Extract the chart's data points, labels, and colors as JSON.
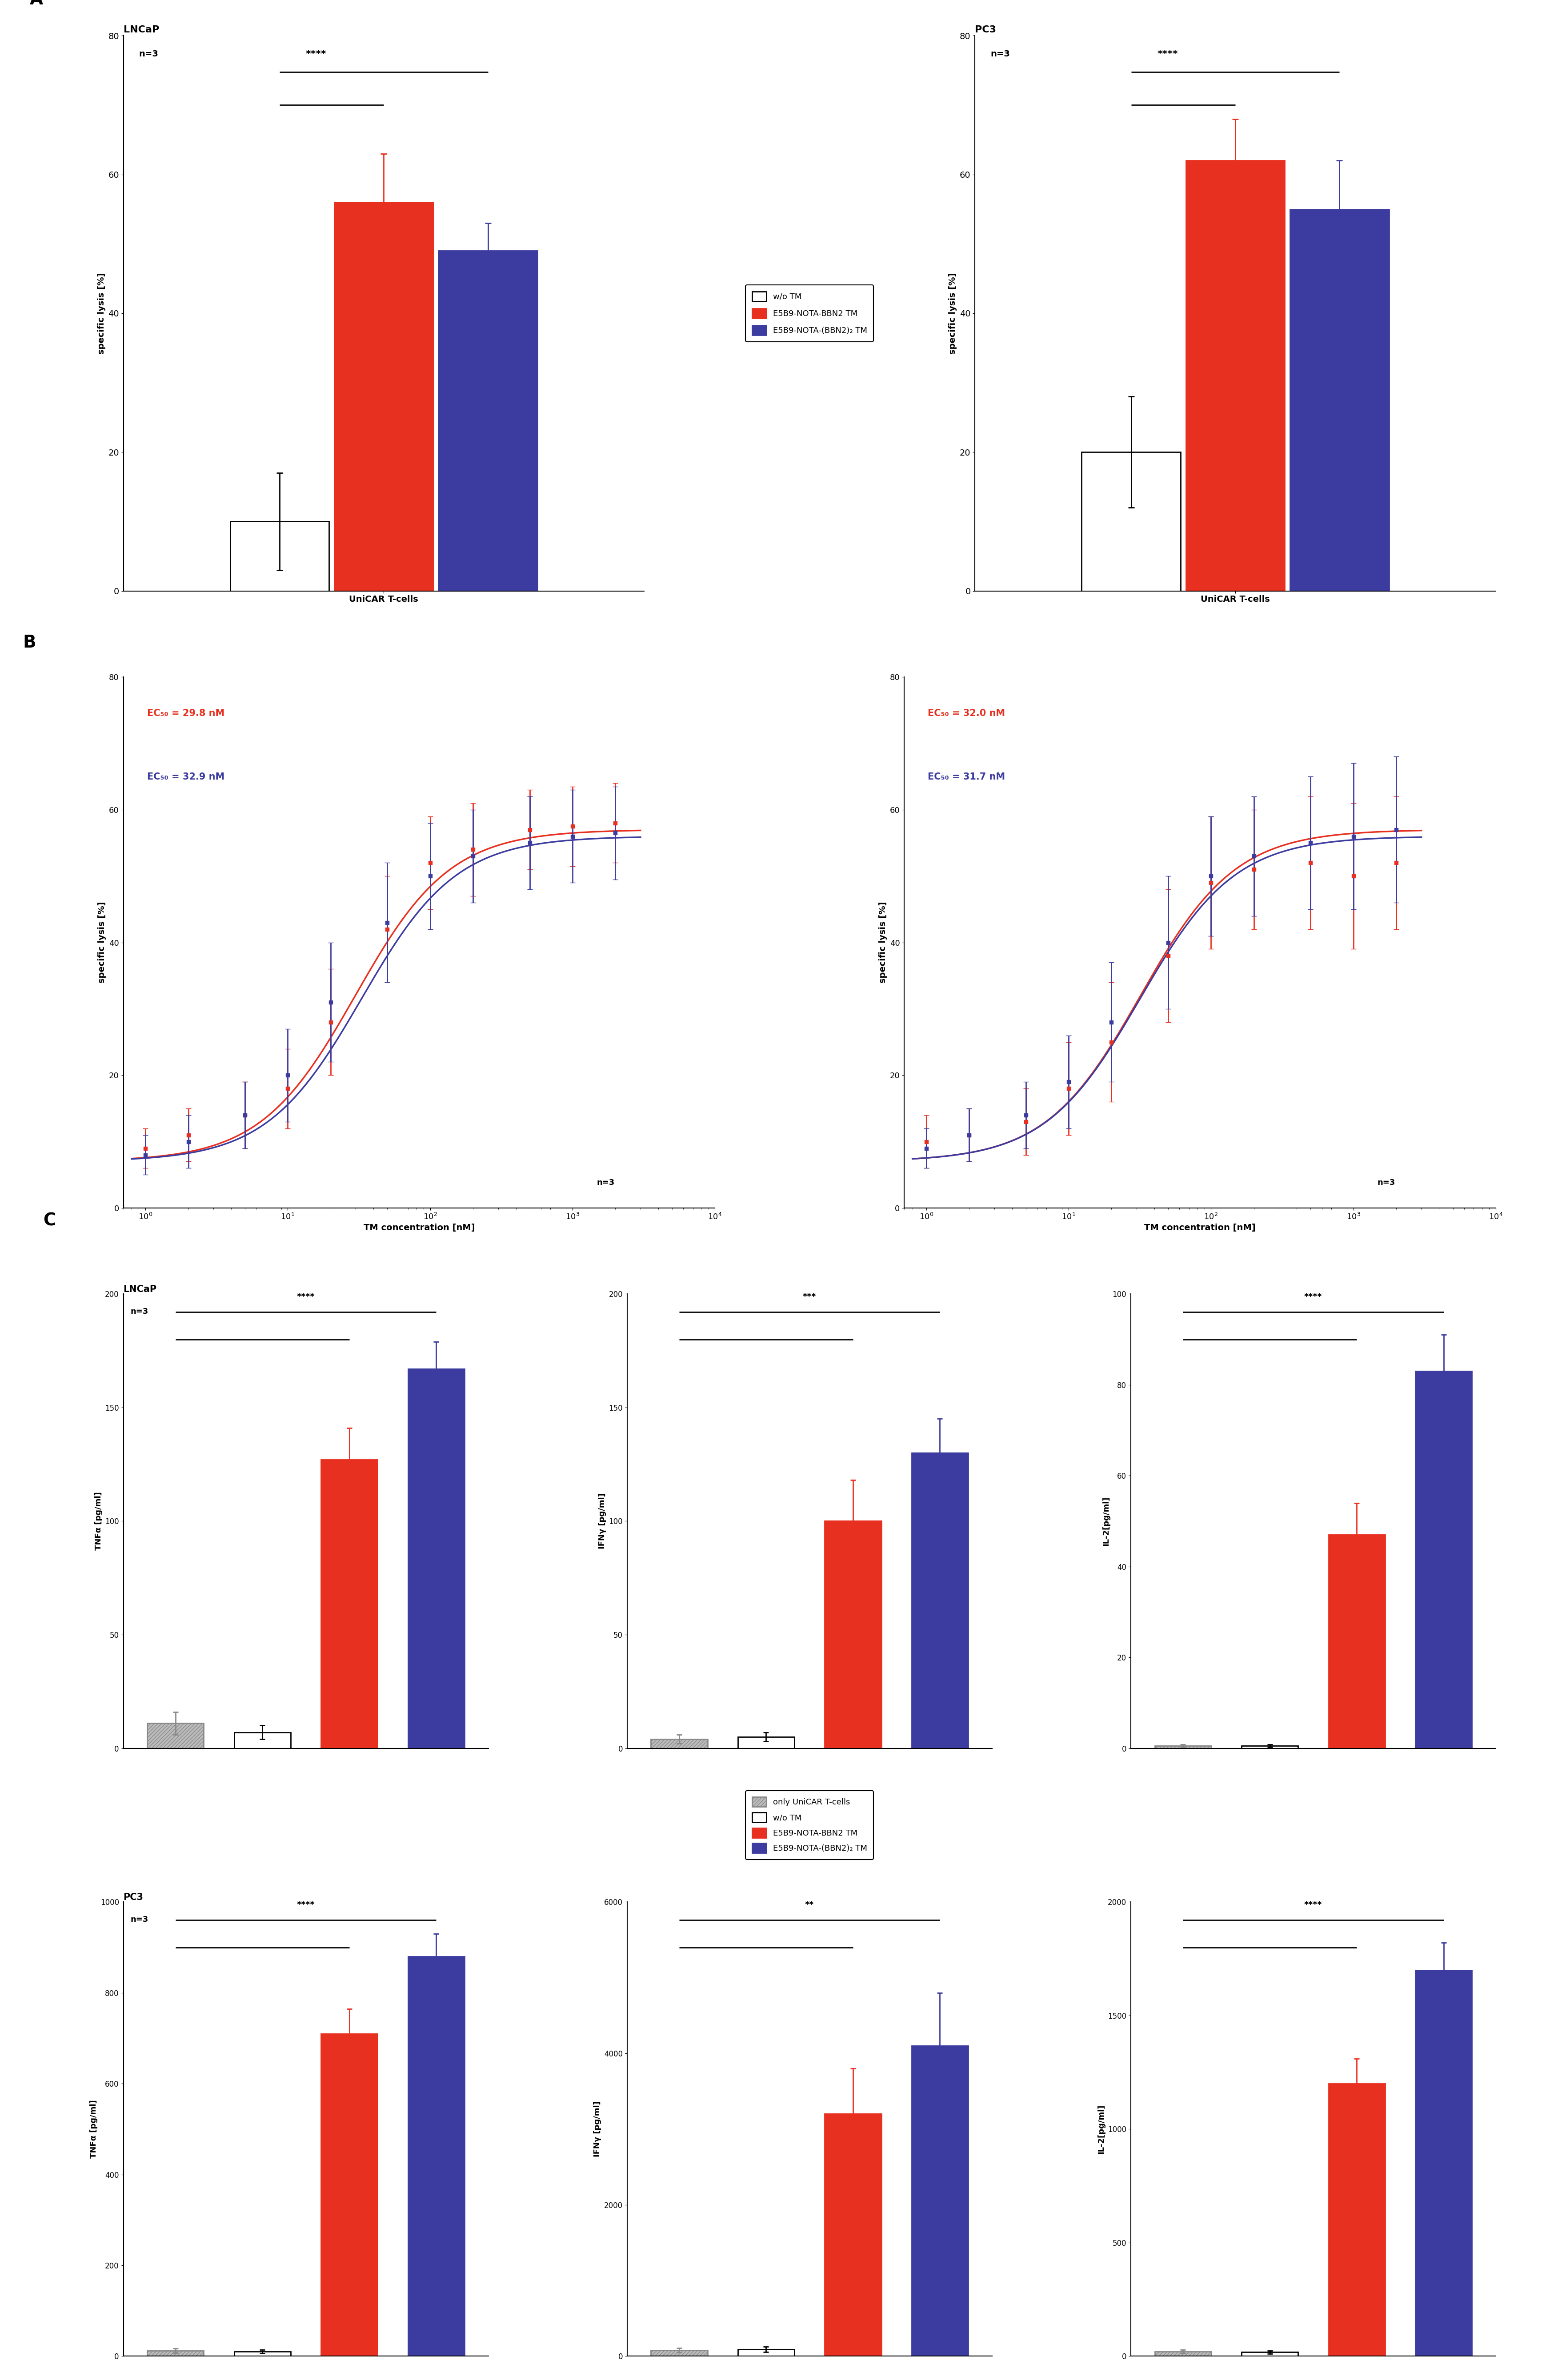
{
  "panel_A_LNCaP": {
    "title": "LNCaP",
    "bars": [
      {
        "label": "w/o TM",
        "value": 10.0,
        "err": 7.0,
        "color": "#ffffff",
        "edgecolor": "#000000"
      },
      {
        "label": "E5B9-NOTA-BBN2 TM",
        "value": 56.0,
        "err": 7.0,
        "color": "#e83020",
        "edgecolor": "#e83020"
      },
      {
        "label": "E5B9-NOTA-(BBN2)2 TM",
        "value": 49.0,
        "err": 4.0,
        "color": "#3c3ca0",
        "edgecolor": "#3c3ca0"
      }
    ],
    "ylabel": "specific lysis [%]",
    "ylim": [
      0,
      80
    ],
    "yticks": [
      0,
      20,
      40,
      60,
      80
    ],
    "n_label": "n=3",
    "sig_label": "****"
  },
  "panel_A_PC3": {
    "title": "PC3",
    "bars": [
      {
        "label": "w/o TM",
        "value": 20.0,
        "err": 8.0,
        "color": "#ffffff",
        "edgecolor": "#000000"
      },
      {
        "label": "E5B9-NOTA-BBN2 TM",
        "value": 62.0,
        "err": 6.0,
        "color": "#e83020",
        "edgecolor": "#e83020"
      },
      {
        "label": "E5B9-NOTA-(BBN2)2 TM",
        "value": 55.0,
        "err": 7.0,
        "color": "#3c3ca0",
        "edgecolor": "#3c3ca0"
      }
    ],
    "ylabel": "specific lysis [%]",
    "ylim": [
      0,
      80
    ],
    "yticks": [
      0,
      20,
      40,
      60,
      80
    ],
    "n_label": "n=3",
    "sig_label": "****"
  },
  "panel_B_LNCaP": {
    "ec50_red": 29.8,
    "ec50_purple": 32.9,
    "xlabel": "TM concentration [nM]",
    "ylabel": "specific lysis [%]",
    "ylim": [
      0,
      80
    ],
    "yticks": [
      0,
      20,
      40,
      60,
      80
    ],
    "n_label": "n=3",
    "red_x": [
      1.0,
      2.0,
      5.0,
      10.0,
      20.0,
      50.0,
      100.0,
      200.0,
      500.0,
      1000.0,
      2000.0
    ],
    "red_y": [
      9.0,
      11.0,
      14.0,
      18.0,
      28.0,
      42.0,
      52.0,
      54.0,
      57.0,
      57.5,
      58.0
    ],
    "red_err": [
      3.0,
      4.0,
      5.0,
      6.0,
      8.0,
      8.0,
      7.0,
      7.0,
      6.0,
      6.0,
      6.0
    ],
    "purple_x": [
      1.0,
      2.0,
      5.0,
      10.0,
      20.0,
      50.0,
      100.0,
      200.0,
      500.0,
      1000.0,
      2000.0
    ],
    "purple_y": [
      8.0,
      10.0,
      14.0,
      20.0,
      31.0,
      43.0,
      50.0,
      53.0,
      55.0,
      56.0,
      56.5
    ],
    "purple_err": [
      3.0,
      4.0,
      5.0,
      7.0,
      9.0,
      9.0,
      8.0,
      7.0,
      7.0,
      7.0,
      7.0
    ]
  },
  "panel_B_PC3": {
    "ec50_red": 32.0,
    "ec50_purple": 31.7,
    "xlabel": "TM concentration [nM]",
    "ylabel": "specific lysis [%]",
    "ylim": [
      0,
      80
    ],
    "yticks": [
      0,
      20,
      40,
      60,
      80
    ],
    "n_label": "n=3",
    "red_x": [
      1.0,
      2.0,
      5.0,
      10.0,
      20.0,
      50.0,
      100.0,
      200.0,
      500.0,
      1000.0,
      2000.0
    ],
    "red_y": [
      10.0,
      11.0,
      13.0,
      18.0,
      25.0,
      38.0,
      49.0,
      51.0,
      52.0,
      50.0,
      52.0
    ],
    "red_err": [
      4.0,
      4.0,
      5.0,
      7.0,
      9.0,
      10.0,
      10.0,
      9.0,
      10.0,
      11.0,
      10.0
    ],
    "purple_x": [
      1.0,
      2.0,
      5.0,
      10.0,
      20.0,
      50.0,
      100.0,
      200.0,
      500.0,
      1000.0,
      2000.0
    ],
    "purple_y": [
      9.0,
      11.0,
      14.0,
      19.0,
      28.0,
      40.0,
      50.0,
      53.0,
      55.0,
      56.0,
      57.0
    ],
    "purple_err": [
      3.0,
      4.0,
      5.0,
      7.0,
      9.0,
      10.0,
      9.0,
      9.0,
      10.0,
      11.0,
      11.0
    ]
  },
  "panel_C_LNCaP_TNFa": {
    "title": "LNCaP",
    "ylabel": "TNFα [pg/ml]",
    "ylim": [
      0,
      200
    ],
    "yticks": [
      0,
      50,
      100,
      150,
      200
    ],
    "n_label": "n=3",
    "sig_label": "****",
    "bars": [
      {
        "value": 11.0,
        "err": 5.0,
        "color": "#bbbbbb",
        "edgecolor": "#888888",
        "hatch": "////"
      },
      {
        "value": 7.0,
        "err": 3.0,
        "color": "#ffffff",
        "edgecolor": "#000000",
        "hatch": ""
      },
      {
        "value": 127.0,
        "err": 14.0,
        "color": "#e83020",
        "edgecolor": "#e83020",
        "hatch": ""
      },
      {
        "value": 167.0,
        "err": 12.0,
        "color": "#3c3ca0",
        "edgecolor": "#3c3ca0",
        "hatch": ""
      }
    ]
  },
  "panel_C_LNCaP_IFNy": {
    "ylabel": "IFNγ [pg/ml]",
    "ylim": [
      0,
      200
    ],
    "yticks": [
      0,
      50,
      100,
      150,
      200
    ],
    "sig_label": "***",
    "bars": [
      {
        "value": 4.0,
        "err": 2.0,
        "color": "#bbbbbb",
        "edgecolor": "#888888",
        "hatch": "////"
      },
      {
        "value": 5.0,
        "err": 2.0,
        "color": "#ffffff",
        "edgecolor": "#000000",
        "hatch": ""
      },
      {
        "value": 100.0,
        "err": 18.0,
        "color": "#e83020",
        "edgecolor": "#e83020",
        "hatch": ""
      },
      {
        "value": 130.0,
        "err": 15.0,
        "color": "#3c3ca0",
        "edgecolor": "#3c3ca0",
        "hatch": ""
      }
    ]
  },
  "panel_C_LNCaP_IL2": {
    "ylabel": "IL-2[pg/ml]",
    "ylim": [
      0,
      100
    ],
    "yticks": [
      0,
      20,
      40,
      60,
      80,
      100
    ],
    "sig_label": "****",
    "bars": [
      {
        "value": 0.5,
        "err": 0.3,
        "color": "#bbbbbb",
        "edgecolor": "#888888",
        "hatch": "////"
      },
      {
        "value": 0.5,
        "err": 0.3,
        "color": "#ffffff",
        "edgecolor": "#000000",
        "hatch": ""
      },
      {
        "value": 47.0,
        "err": 7.0,
        "color": "#e83020",
        "edgecolor": "#e83020",
        "hatch": ""
      },
      {
        "value": 83.0,
        "err": 8.0,
        "color": "#3c3ca0",
        "edgecolor": "#3c3ca0",
        "hatch": ""
      }
    ]
  },
  "panel_C_PC3_TNFa": {
    "title": "PC3",
    "ylabel": "TNFα [pg/ml]",
    "ylim": [
      0,
      1000
    ],
    "yticks": [
      0,
      200,
      400,
      600,
      800,
      1000
    ],
    "n_label": "n=3",
    "sig_label": "****",
    "bars": [
      {
        "value": 12.0,
        "err": 5.0,
        "color": "#bbbbbb",
        "edgecolor": "#888888",
        "hatch": "////"
      },
      {
        "value": 10.0,
        "err": 4.0,
        "color": "#ffffff",
        "edgecolor": "#000000",
        "hatch": ""
      },
      {
        "value": 710.0,
        "err": 55.0,
        "color": "#e83020",
        "edgecolor": "#e83020",
        "hatch": ""
      },
      {
        "value": 880.0,
        "err": 50.0,
        "color": "#3c3ca0",
        "edgecolor": "#3c3ca0",
        "hatch": ""
      }
    ]
  },
  "panel_C_PC3_IFNy": {
    "ylabel": "IFNγ [pg/ml]",
    "ylim": [
      0,
      6000
    ],
    "yticks": [
      0,
      2000,
      4000,
      6000
    ],
    "sig_label": "**",
    "bars": [
      {
        "value": 80.0,
        "err": 30.0,
        "color": "#bbbbbb",
        "edgecolor": "#888888",
        "hatch": "////"
      },
      {
        "value": 90.0,
        "err": 35.0,
        "color": "#ffffff",
        "edgecolor": "#000000",
        "hatch": ""
      },
      {
        "value": 3200.0,
        "err": 600.0,
        "color": "#e83020",
        "edgecolor": "#e83020",
        "hatch": ""
      },
      {
        "value": 4100.0,
        "err": 700.0,
        "color": "#3c3ca0",
        "edgecolor": "#3c3ca0",
        "hatch": ""
      }
    ]
  },
  "panel_C_PC3_IL2": {
    "ylabel": "IL-2[pg/ml]",
    "ylim": [
      0,
      2000
    ],
    "yticks": [
      0,
      500,
      1000,
      1500,
      2000
    ],
    "sig_label": "****",
    "bars": [
      {
        "value": 20.0,
        "err": 8.0,
        "color": "#bbbbbb",
        "edgecolor": "#888888",
        "hatch": "////"
      },
      {
        "value": 18.0,
        "err": 7.0,
        "color": "#ffffff",
        "edgecolor": "#000000",
        "hatch": ""
      },
      {
        "value": 1200.0,
        "err": 110.0,
        "color": "#e83020",
        "edgecolor": "#e83020",
        "hatch": ""
      },
      {
        "value": 1700.0,
        "err": 120.0,
        "color": "#3c3ca0",
        "edgecolor": "#3c3ca0",
        "hatch": ""
      }
    ]
  },
  "legend_A": {
    "labels": [
      "w/o TM",
      "E5B9-NOTA-BBN2 TM",
      "E5B9-NOTA-(BBN2)₂ TM"
    ],
    "colors": [
      "#ffffff",
      "#e83020",
      "#3c3ca0"
    ],
    "edgecolors": [
      "#000000",
      "#e83020",
      "#3c3ca0"
    ]
  },
  "legend_C": {
    "labels": [
      "only UniCAR T-cells",
      "w/o TM",
      "E5B9-NOTA-BBN2 TM",
      "E5B9-NOTA-(BBN2)₂ TM"
    ],
    "colors": [
      "#bbbbbb",
      "#ffffff",
      "#e83020",
      "#3c3ca0"
    ],
    "edgecolors": [
      "#888888",
      "#000000",
      "#e83020",
      "#3c3ca0"
    ],
    "hatches": [
      "////",
      "",
      "",
      ""
    ]
  },
  "red_color": "#e83020",
  "purple_color": "#3c3ca0"
}
